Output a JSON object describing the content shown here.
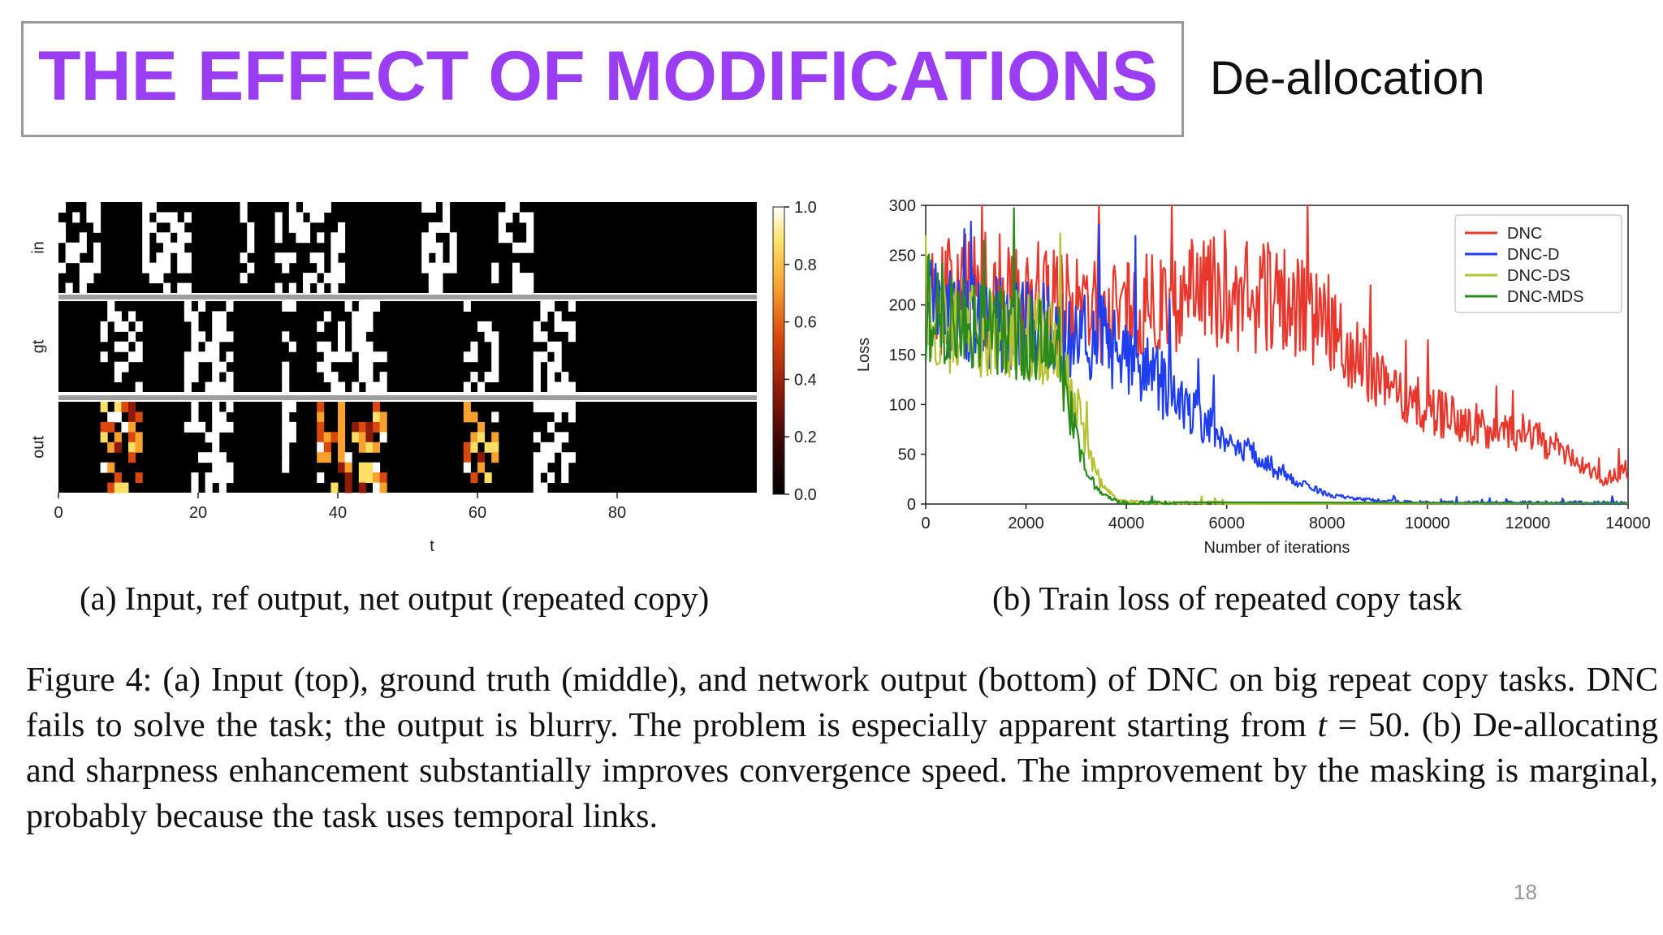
{
  "slide": {
    "title": "THE EFFECT OF MODIFICATIONS",
    "subtitle": "De-allocation",
    "page_number": "18"
  },
  "figure": {
    "caption_a": "(a) Input, ref output, net output (repeated copy)",
    "caption_b": "(b) Train loss of repeated copy task",
    "caption_main_1": "Figure 4: (a) Input (top), ground truth (middle), and network output (bottom) of DNC on big repeat copy tasks.  DNC fails to solve the task; the output is blurry.  The problem is especially apparent starting from ",
    "caption_math_var": "t",
    "caption_math_rest": " = 50",
    "caption_main_2": ". (b) De-allocating and sharpness enhancement substantially improves convergence speed. The improvement by the masking is marginal, probably because the task uses temporal links."
  },
  "chart_data": [
    {
      "type": "heatmap",
      "panel_labels": [
        "in",
        "gt",
        "out"
      ],
      "xlabel": "t",
      "x_ticks": [
        0,
        20,
        40,
        60,
        80
      ],
      "xlim": [
        0,
        100
      ],
      "colorbar_ticks": [
        "1.0",
        "0.8",
        "0.6",
        "0.4",
        "0.2",
        "0.0"
      ],
      "colorbar_range": [
        0.0,
        1.0
      ],
      "colormap": [
        "#000000",
        "#3a0606",
        "#8e1a0a",
        "#d9480f",
        "#f8a12e",
        "#ffe066",
        "#ffffff"
      ]
    },
    {
      "type": "line",
      "xlabel": "Number of iterations",
      "ylabel": "Loss",
      "xlim": [
        0,
        14000
      ],
      "ylim": [
        0,
        300
      ],
      "x_ticks": [
        0,
        2000,
        4000,
        6000,
        8000,
        10000,
        12000,
        14000
      ],
      "y_ticks": [
        0,
        50,
        100,
        150,
        200,
        250,
        300
      ],
      "legend_position": "top-right",
      "series": [
        {
          "name": "DNC",
          "color": "#e8382e",
          "x": [
            0,
            500,
            1000,
            1500,
            2000,
            2500,
            3000,
            3500,
            4000,
            4500,
            5000,
            5500,
            6000,
            6500,
            7000,
            7500,
            8000,
            8500,
            9000,
            9500,
            10000,
            10500,
            11000,
            11500,
            12000,
            12500,
            13000,
            13500,
            14000
          ],
          "y": [
            200,
            210,
            215,
            215,
            210,
            205,
            200,
            195,
            195,
            200,
            205,
            210,
            215,
            210,
            205,
            200,
            185,
            160,
            130,
            110,
            95,
            85,
            80,
            75,
            70,
            60,
            40,
            25,
            35
          ]
        },
        {
          "name": "DNC-D",
          "color": "#1f3ef0",
          "x": [
            0,
            500,
            1000,
            1500,
            2000,
            2500,
            3000,
            3500,
            4000,
            4500,
            5000,
            5500,
            6000,
            6500,
            7000,
            7500,
            8000,
            8500,
            9000,
            9500,
            10000,
            11000,
            12000,
            13000,
            14000
          ],
          "y": [
            200,
            190,
            185,
            180,
            180,
            175,
            170,
            165,
            150,
            130,
            105,
            85,
            65,
            50,
            35,
            20,
            10,
            5,
            3,
            2,
            1,
            1,
            1,
            1,
            1
          ]
        },
        {
          "name": "DNC-DS",
          "color": "#b5c234",
          "x": [
            0,
            500,
            1000,
            1500,
            2000,
            2500,
            3000,
            3200,
            3500,
            3800,
            4000,
            4500,
            5000,
            6000
          ],
          "y": [
            190,
            180,
            175,
            170,
            170,
            165,
            100,
            55,
            20,
            5,
            2,
            1,
            1,
            1
          ]
        },
        {
          "name": "DNC-MDS",
          "color": "#2a8a1e",
          "x": [
            0,
            500,
            1000,
            1500,
            2000,
            2500,
            2800,
            3000,
            3200,
            3500,
            3800,
            4000,
            4500,
            5000
          ],
          "y": [
            200,
            185,
            180,
            175,
            170,
            160,
            110,
            70,
            30,
            10,
            3,
            1,
            1,
            1
          ]
        }
      ]
    }
  ]
}
